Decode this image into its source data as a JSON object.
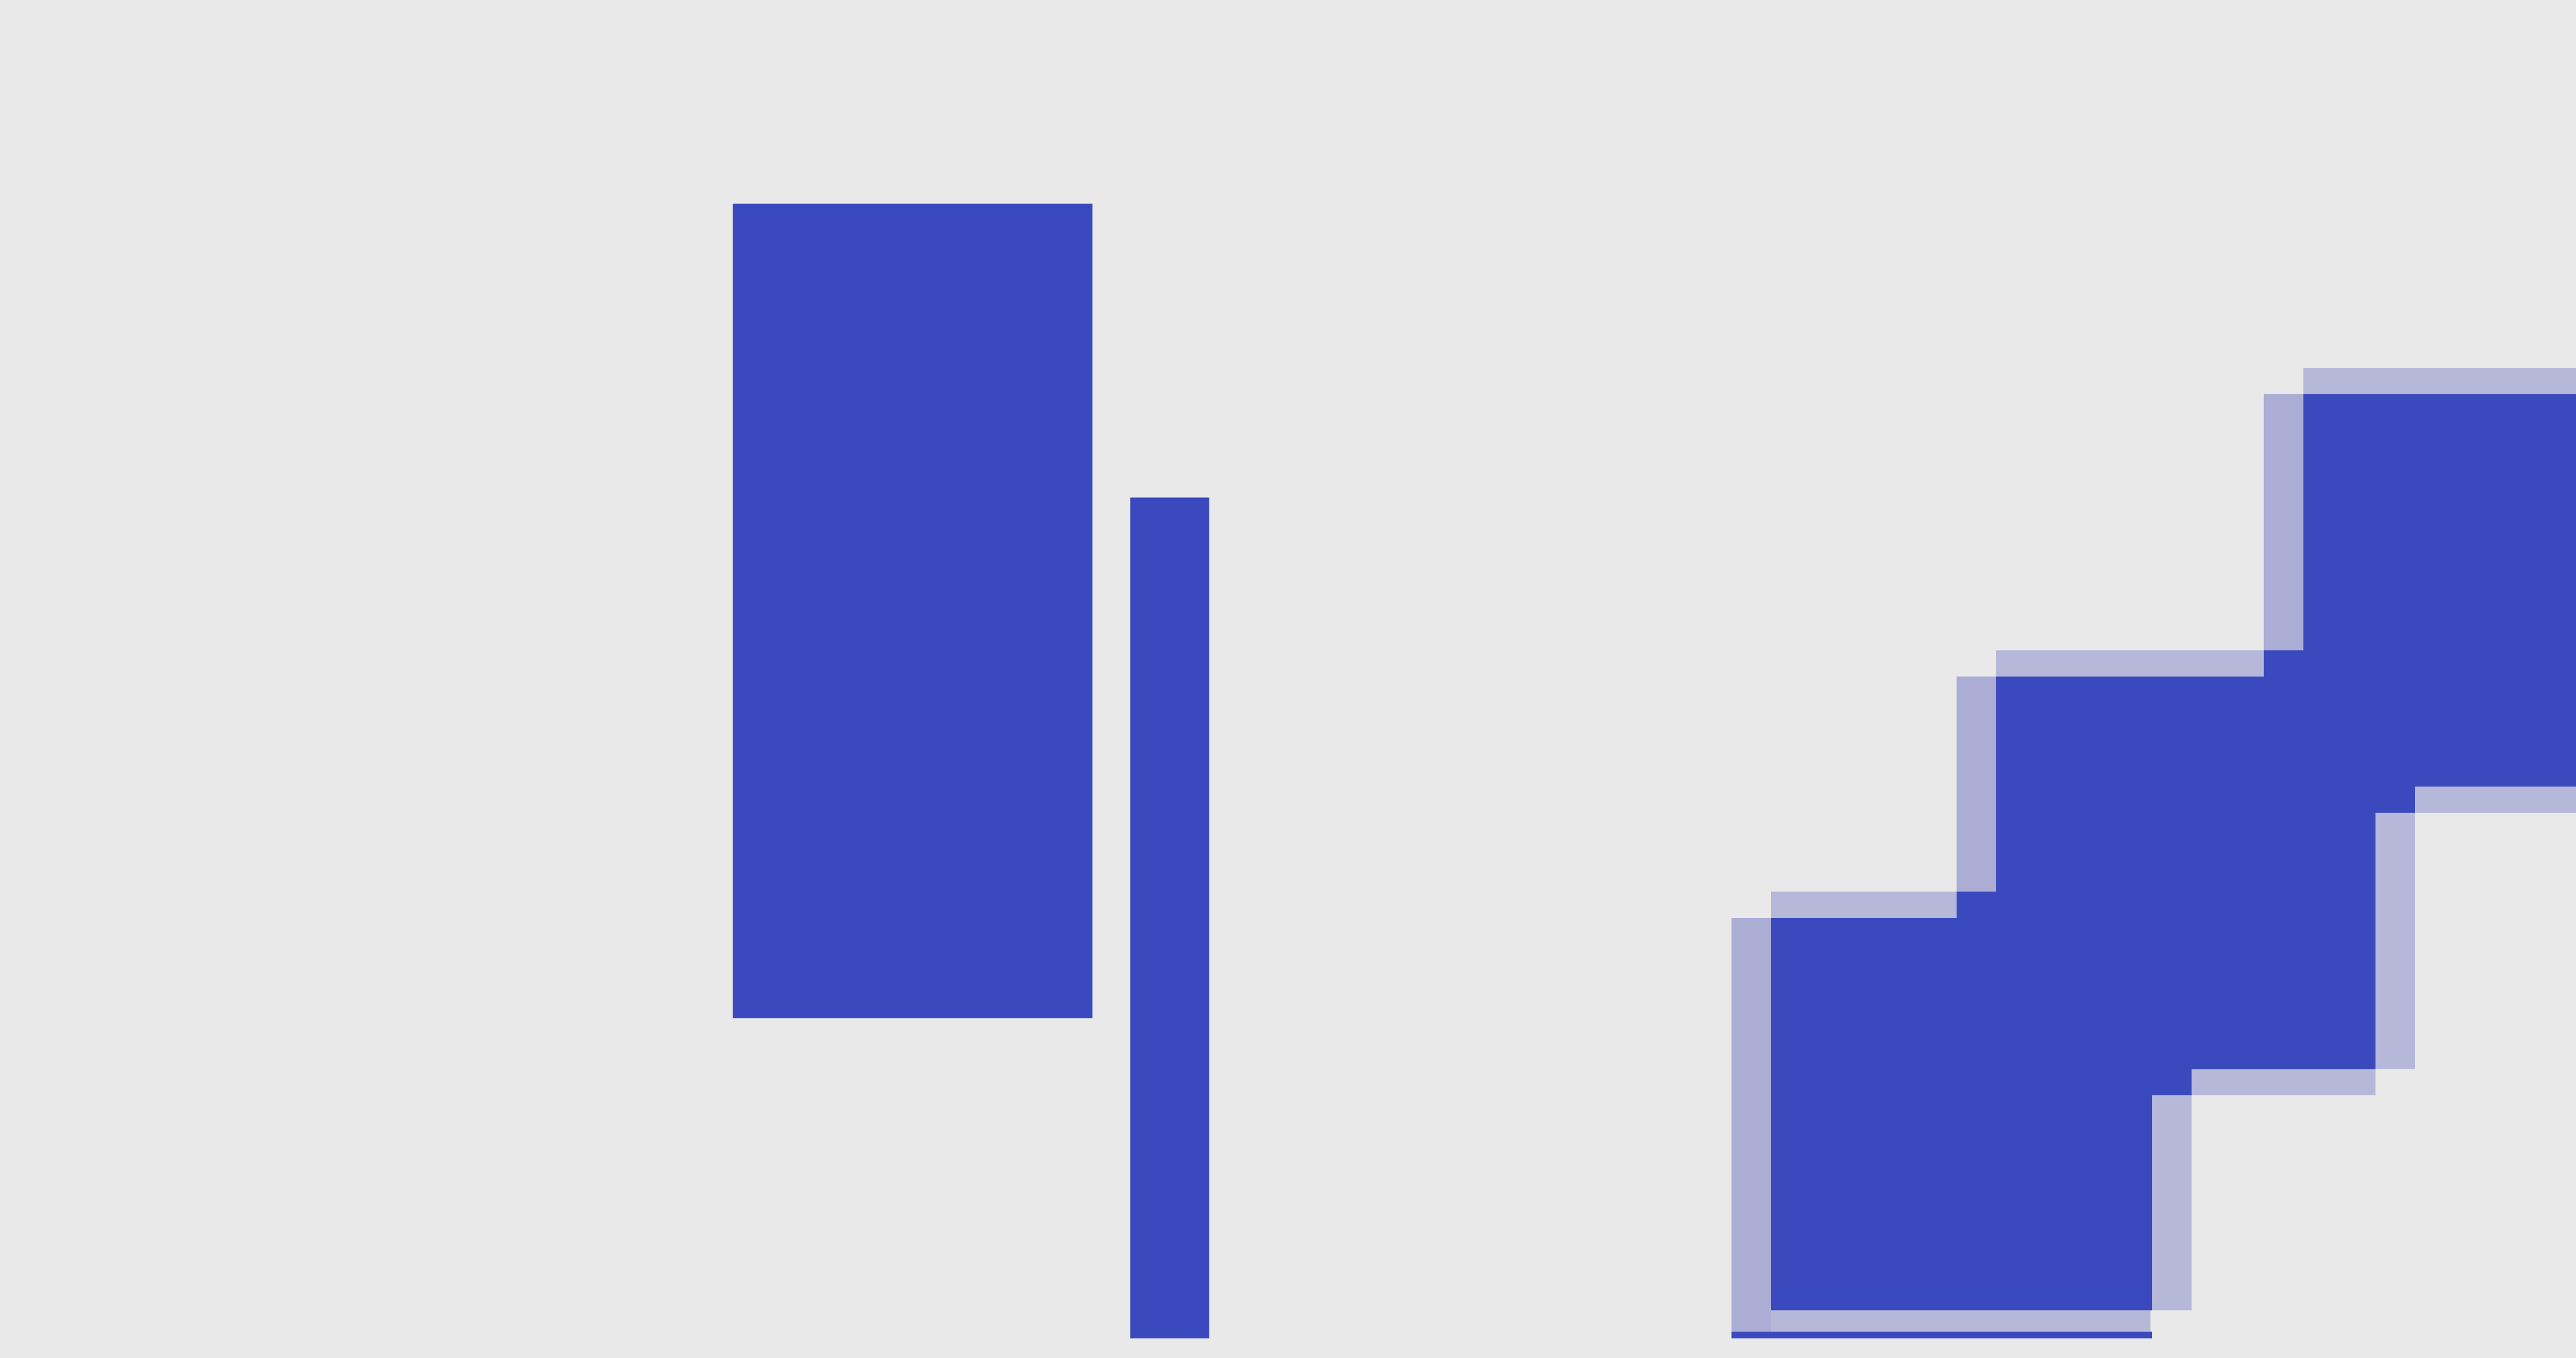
{
  "canvas": {
    "background": "#e9e9e9"
  },
  "colors": {
    "primary": "#3a49bd",
    "shadow_light": "#b6b8d9",
    "shadow_mid": "#abadd5"
  },
  "shapes": {
    "tall_block": "solid-rectangle",
    "thin_bar": "solid-bar",
    "staircase": "stepped-block-with-soft-shadow"
  }
}
